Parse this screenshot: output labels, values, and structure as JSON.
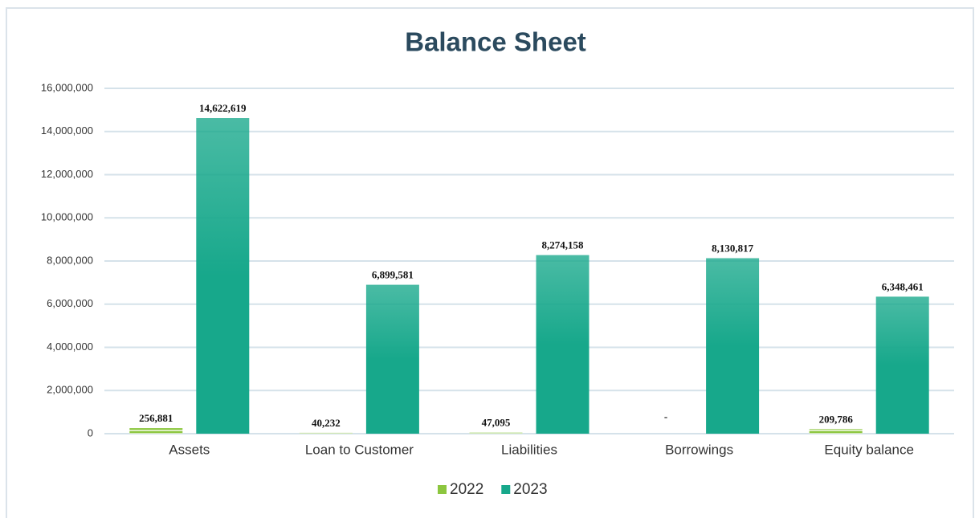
{
  "chart_data": {
    "type": "bar",
    "title": "Balance Sheet",
    "categories": [
      "Assets",
      "Loan to Customer",
      "Liabilities",
      "Borrowings",
      "Equity balance"
    ],
    "series": [
      {
        "name": "2022",
        "color": "#8cc63f",
        "values": [
          256881,
          40232,
          47095,
          0,
          209786
        ],
        "value_labels": [
          "256,881",
          "40,232",
          "47,095",
          "-",
          "209,786"
        ]
      },
      {
        "name": "2023",
        "color": "#17a88b",
        "values": [
          14622619,
          6899581,
          8274158,
          8130817,
          6348461
        ],
        "value_labels": [
          "14,622,619",
          "6,899,581",
          "8,274,158",
          "8,130,817",
          "6,348,461"
        ]
      }
    ],
    "ylim": [
      0,
      16000000
    ],
    "yticks": [
      {
        "value": 0,
        "label": "0"
      },
      {
        "value": 2000000,
        "label": "2,000,000"
      },
      {
        "value": 4000000,
        "label": "4,000,000"
      },
      {
        "value": 6000000,
        "label": "6,000,000"
      },
      {
        "value": 8000000,
        "label": "8,000,000"
      },
      {
        "value": 10000000,
        "label": "10,000,000"
      },
      {
        "value": 12000000,
        "label": "12,000,000"
      },
      {
        "value": 14000000,
        "label": "14,000,000"
      },
      {
        "value": 16000000,
        "label": "16,000,000"
      }
    ],
    "grid": true,
    "legend": "bottom"
  }
}
